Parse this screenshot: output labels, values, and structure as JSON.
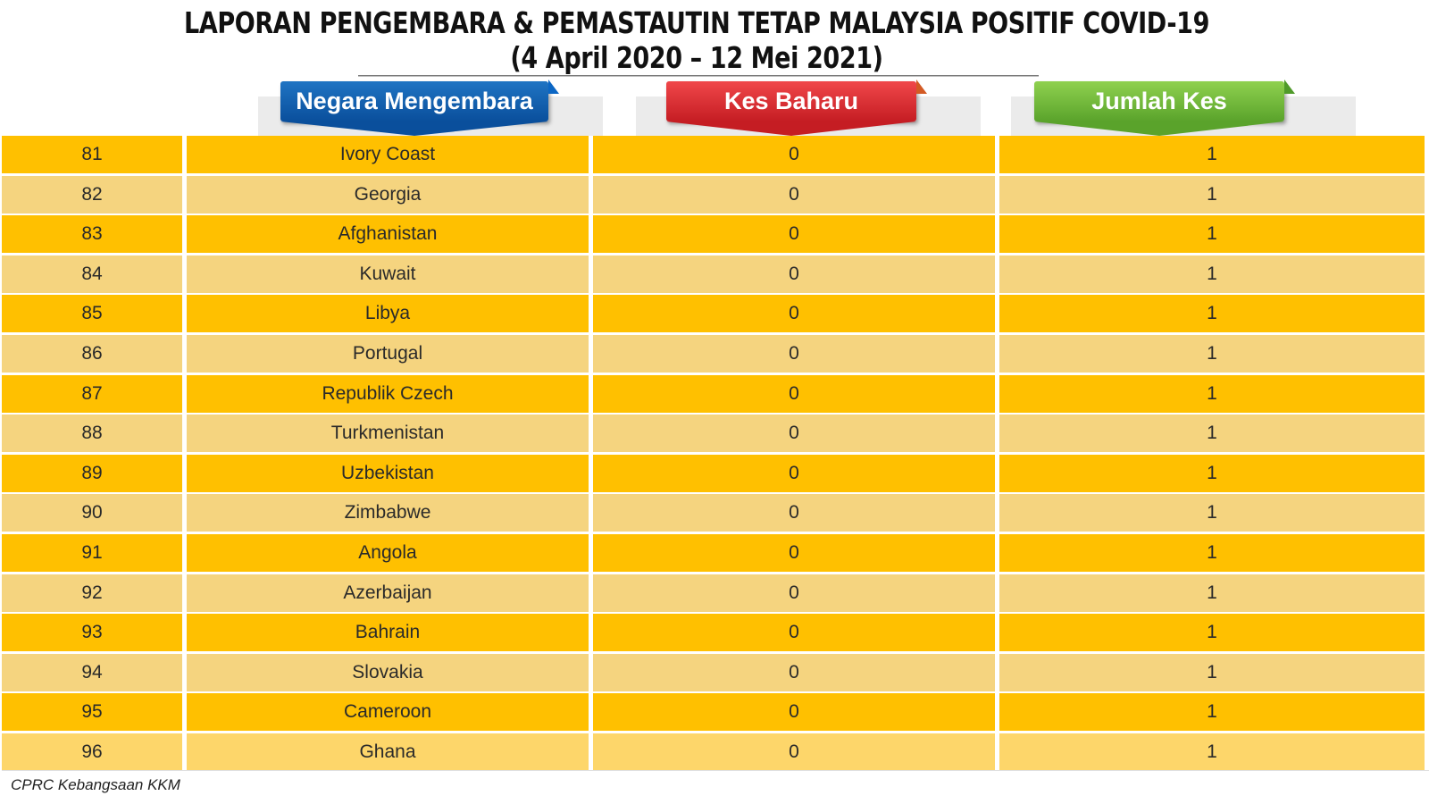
{
  "title": {
    "line1": "LAPORAN PENGEMBARA & PEMASTAUTIN TETAP MALAYSIA POSITIF COVID-19",
    "line2": "(4 April 2020 – 12 Mei 2021)"
  },
  "headers": {
    "country": "Negara Mengembara",
    "new_cases": "Kes Baharu",
    "total_cases": "Jumlah Kes"
  },
  "colors": {
    "row_primary": "#ffc000",
    "row_alternate": "#f5d47f",
    "header_blue": "#0a4f9c",
    "header_red": "#c51d23",
    "header_green": "#5aa32b"
  },
  "rows": [
    {
      "rank": "81",
      "country": "Ivory Coast",
      "new": "0",
      "total": "1"
    },
    {
      "rank": "82",
      "country": "Georgia",
      "new": "0",
      "total": "1"
    },
    {
      "rank": "83",
      "country": "Afghanistan",
      "new": "0",
      "total": "1"
    },
    {
      "rank": "84",
      "country": "Kuwait",
      "new": "0",
      "total": "1"
    },
    {
      "rank": "85",
      "country": "Libya",
      "new": "0",
      "total": "1"
    },
    {
      "rank": "86",
      "country": "Portugal",
      "new": "0",
      "total": "1"
    },
    {
      "rank": "87",
      "country": "Republik Czech",
      "new": "0",
      "total": "1"
    },
    {
      "rank": "88",
      "country": "Turkmenistan",
      "new": "0",
      "total": "1"
    },
    {
      "rank": "89",
      "country": "Uzbekistan",
      "new": "0",
      "total": "1"
    },
    {
      "rank": "90",
      "country": "Zimbabwe",
      "new": "0",
      "total": "1"
    },
    {
      "rank": "91",
      "country": "Angola",
      "new": "0",
      "total": "1"
    },
    {
      "rank": "92",
      "country": "Azerbaijan",
      "new": "0",
      "total": "1"
    },
    {
      "rank": "93",
      "country": "Bahrain",
      "new": "0",
      "total": "1"
    },
    {
      "rank": "94",
      "country": "Slovakia",
      "new": "0",
      "total": "1"
    },
    {
      "rank": "95",
      "country": "Cameroon",
      "new": "0",
      "total": "1"
    },
    {
      "rank": "96",
      "country": "Ghana",
      "new": "0",
      "total": "1"
    }
  ],
  "footer": {
    "source": "CPRC Kebangsaan KKM"
  }
}
